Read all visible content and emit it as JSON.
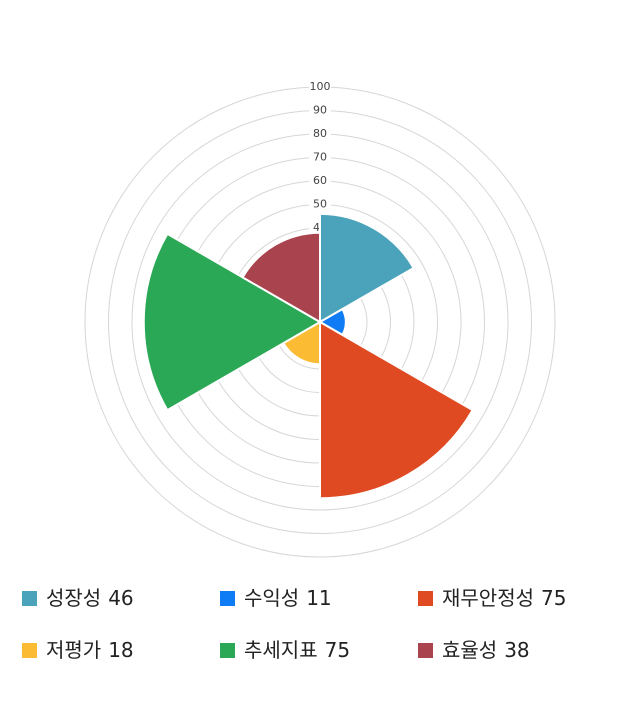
{
  "chart_data": {
    "type": "polarArea",
    "categories": [
      "성장성",
      "수익성",
      "재무안정성",
      "저평가",
      "추세지표",
      "효율성"
    ],
    "values": [
      46,
      11,
      75,
      18,
      75,
      38
    ],
    "colors": [
      "#4aa3ba",
      "#0f7cf5",
      "#e04a22",
      "#fbbb33",
      "#2ba855",
      "#a9434e"
    ],
    "rlim": [
      0,
      100
    ],
    "rticks": [
      10,
      20,
      30,
      40,
      50,
      60,
      70,
      80,
      90,
      100
    ],
    "grid": true
  }
}
